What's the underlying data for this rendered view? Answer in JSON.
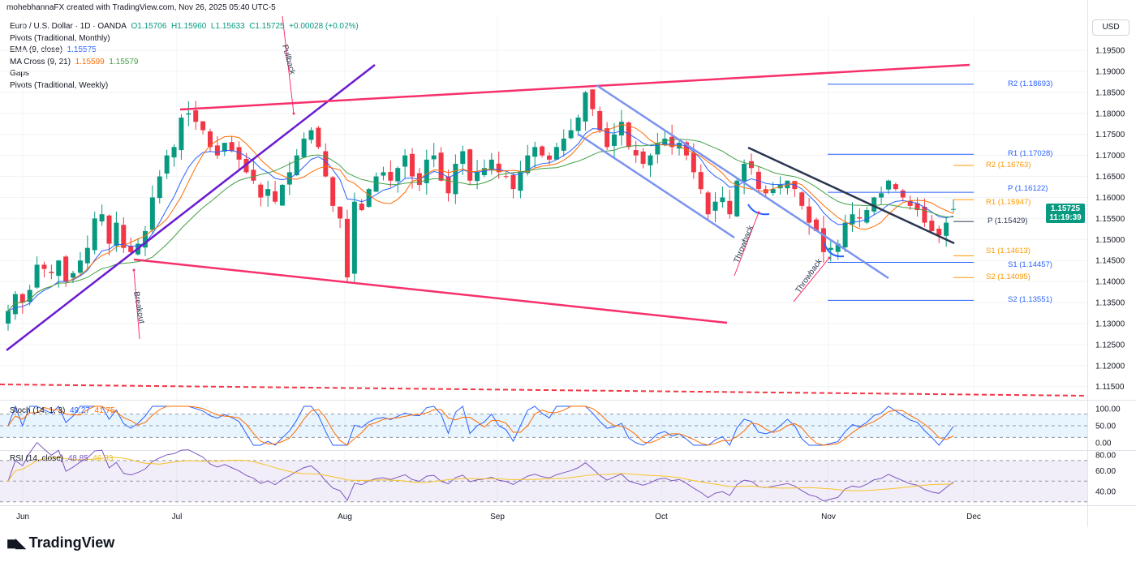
{
  "header": {
    "created_by": "mohebhannaFX created with TradingView.com, Nov 26, 2025 05:40 UTC-5"
  },
  "legend": {
    "symbol": "Euro / U.S. Dollar · 1D · OANDA",
    "open": "O1.15706",
    "high": "H1.15960",
    "low": "L1.15633",
    "close": "C1.15725",
    "change": "+0.00028 (+0.02%)",
    "pivots_monthly": "Pivots (Traditional, Monthly)",
    "ema": "EMA (9, close)",
    "ema_value": "1.15575",
    "ma_cross": "MA Cross (9, 21)",
    "ma_fast": "1.15599",
    "ma_slow": "1.15579",
    "gaps": "Gaps",
    "pivots_weekly": "Pivots (Traditional, Weekly)"
  },
  "currency": "USD",
  "last_price": {
    "price": "1.15725",
    "countdown": "11:19:39"
  },
  "pivots_monthly": [
    {
      "label": "R2 (1.18693)",
      "value": 1.18693
    },
    {
      "label": "R1 (1.17028)",
      "value": 1.17028
    },
    {
      "label": "P (1.16122)",
      "value": 1.16122
    },
    {
      "label": "S1 (1.14457)",
      "value": 1.14457
    },
    {
      "label": "S2 (1.13551)",
      "value": 1.13551
    }
  ],
  "pivots_weekly": [
    {
      "label": "R2 (1.16763)",
      "value": 1.16763
    },
    {
      "label": "R1 (1.15947)",
      "value": 1.15947
    },
    {
      "label": "P (1.15429)",
      "value": 1.15429
    },
    {
      "label": "S1 (1.14613)",
      "value": 1.14613
    },
    {
      "label": "S2 (1.14095)",
      "value": 1.14095
    }
  ],
  "annotations": {
    "pullback": "Pullback",
    "breakout": "Breakout",
    "throwback1": "Throwback",
    "throwback2": "Throwback"
  },
  "stoch": {
    "label": "Stoch (14, 1, 3)",
    "k": "49.27",
    "d": "41.75",
    "ticks": [
      "100.00",
      "50.00",
      "0.00"
    ]
  },
  "rsi": {
    "label": "RSI (14, close)",
    "value": "48.85",
    "ma": "46.33",
    "ticks": [
      "80.00",
      "60.00",
      "40.00"
    ]
  },
  "footer": {
    "brand": "TradingView"
  },
  "colors": {
    "up": "#089981",
    "down": "#f23645",
    "ema": "#2962ff",
    "ma_fast": "#ff6d00",
    "ma_slow": "#43a047",
    "pivot_monthly": "#2962ff",
    "pivot_weekly": "#ff9800",
    "trend_pink": "#f7306b",
    "trend_purple": "#6a1bd1",
    "channel_blue": "#7b93f0",
    "trend_navy": "#2a3650"
  },
  "chart_data": {
    "type": "candlestick",
    "title": "Euro / U.S. Dollar · 1D · OANDA",
    "ylim": [
      1.11,
      1.2
    ],
    "y_ticks": [
      "1.19500",
      "1.19000",
      "1.18500",
      "1.18000",
      "1.17500",
      "1.17000",
      "1.16500",
      "1.16000",
      "1.15500",
      "1.15000",
      "1.14500",
      "1.14000",
      "1.13500",
      "1.13000",
      "1.12500",
      "1.12000",
      "1.11500"
    ],
    "x_ticks": [
      "Jun",
      "Jul",
      "Aug",
      "Sep",
      "Oct",
      "Nov",
      "Dec"
    ],
    "closes": [
      1.133,
      1.137,
      1.135,
      1.138,
      1.144,
      1.143,
      1.142,
      1.145,
      1.14,
      1.142,
      1.145,
      1.148,
      1.155,
      1.156,
      1.149,
      1.154,
      1.148,
      1.147,
      1.149,
      1.152,
      1.16,
      1.165,
      1.17,
      1.172,
      1.179,
      1.18,
      1.178,
      1.176,
      1.172,
      1.17,
      1.173,
      1.171,
      1.169,
      1.166,
      1.164,
      1.16,
      1.162,
      1.159,
      1.163,
      1.166,
      1.17,
      1.174,
      1.176,
      1.172,
      1.165,
      1.158,
      1.155,
      1.141,
      1.159,
      1.157,
      1.162,
      1.165,
      1.166,
      1.164,
      1.167,
      1.17,
      1.165,
      1.163,
      1.169,
      1.17,
      1.164,
      1.161,
      1.168,
      1.171,
      1.164,
      1.166,
      1.167,
      1.169,
      1.166,
      1.165,
      1.162,
      1.166,
      1.17,
      1.172,
      1.17,
      1.169,
      1.172,
      1.174,
      1.176,
      1.179,
      1.185,
      1.181,
      1.176,
      1.172,
      1.175,
      1.178,
      1.172,
      1.17,
      1.168,
      1.17,
      1.173,
      1.174,
      1.172,
      1.173,
      1.17,
      1.166,
      1.162,
      1.156,
      1.159,
      1.16,
      1.156,
      1.164,
      1.168,
      1.167,
      1.162,
      1.161,
      1.162,
      1.163,
      1.164,
      1.162,
      1.158,
      1.154,
      1.152,
      1.147,
      1.148,
      1.149,
      1.154,
      1.156,
      1.155,
      1.157,
      1.16,
      1.161,
      1.164,
      1.162,
      1.16,
      1.158,
      1.157,
      1.154,
      1.152,
      1.151,
      1.154,
      1.1573
    ],
    "last": {
      "open": 1.15706,
      "high": 1.1596,
      "low": 1.15633,
      "close": 1.15725
    }
  }
}
